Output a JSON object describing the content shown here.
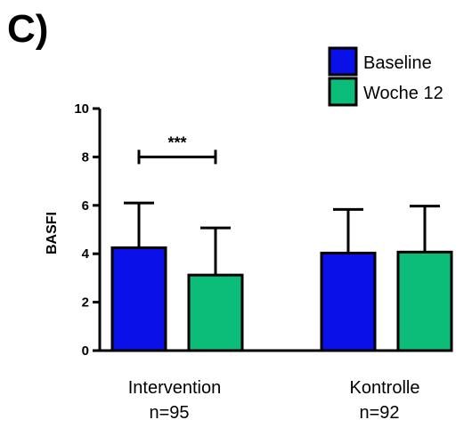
{
  "panel_label": "C)",
  "chart_data": {
    "type": "bar",
    "ylabel": "BASFI",
    "ylim": [
      0,
      10
    ],
    "yticks": [
      0,
      2,
      4,
      6,
      8,
      10
    ],
    "groups": [
      {
        "label": "Intervention",
        "sublabel": "n=95"
      },
      {
        "label": "Kontrolle",
        "sublabel": "n=92"
      }
    ],
    "series": [
      {
        "name": "Baseline",
        "color": "#0a10e8",
        "values": [
          4.25,
          4.03
        ],
        "errors": [
          1.85,
          1.8
        ]
      },
      {
        "name": "Woche 12",
        "color": "#0bbd78",
        "values": [
          3.12,
          4.07
        ],
        "errors": [
          1.95,
          1.9
        ]
      }
    ],
    "annotations": [
      {
        "text": "***",
        "between_series": [
          0,
          1
        ],
        "group": 0,
        "y": 8.0
      }
    ],
    "legend_position": "top-right"
  }
}
